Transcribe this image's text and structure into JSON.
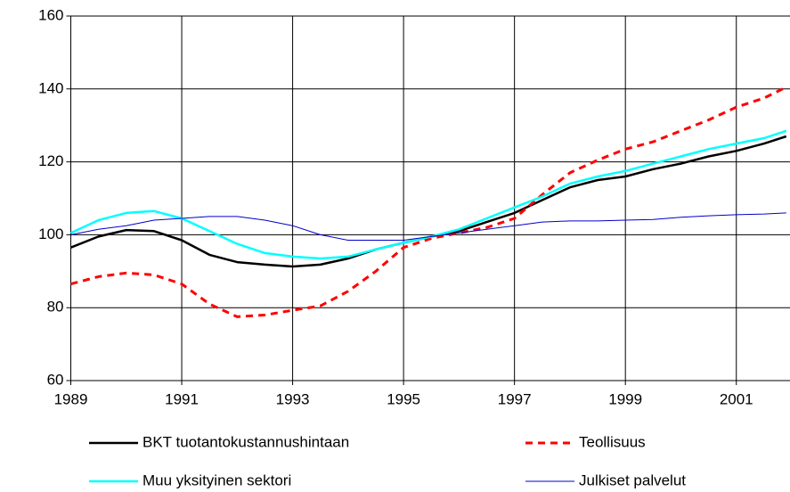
{
  "chart_data": {
    "type": "line",
    "x": [
      1989,
      1989.5,
      1990,
      1990.5,
      1991,
      1991.5,
      1992,
      1992.5,
      1993,
      1993.5,
      1994,
      1994.5,
      1995,
      1995.5,
      1996,
      1996.5,
      1997,
      1997.5,
      1998,
      1998.5,
      1999,
      1999.5,
      2000,
      2000.5,
      2001,
      2001.5,
      2001.9
    ],
    "series": [
      {
        "name": "BKT tuotantokustannushintaan",
        "color": "#000000",
        "width": 2.5,
        "dash": false,
        "values": [
          96.5,
          99.5,
          101.3,
          101,
          98.5,
          94.5,
          92.5,
          91.8,
          91.3,
          91.8,
          93.5,
          96,
          97.8,
          99.5,
          101,
          103.5,
          106,
          109.5,
          113,
          115,
          116,
          118,
          119.5,
          121.5,
          123,
          125,
          127
        ]
      },
      {
        "name": "Teollisuus",
        "color": "#ff0000",
        "width": 3,
        "dash": true,
        "values": [
          86.5,
          88.5,
          89.5,
          89,
          86.5,
          81,
          77.5,
          78,
          79.3,
          80.5,
          84.5,
          90,
          96.5,
          99,
          100.5,
          102,
          104.5,
          111,
          117,
          120.5,
          123.5,
          125.5,
          128.5,
          131.5,
          135,
          137.5,
          140.5
        ]
      },
      {
        "name": "Muu yksityinen sektori",
        "color": "#00ffff",
        "width": 2.5,
        "dash": false,
        "values": [
          100.5,
          104,
          106,
          106.5,
          104.5,
          101,
          97.5,
          95,
          94,
          93.5,
          94,
          96,
          97.8,
          99.5,
          101.5,
          104.5,
          107.5,
          110.5,
          114,
          116,
          117.5,
          119.5,
          121.5,
          123.5,
          125,
          126.5,
          128.5
        ]
      },
      {
        "name": "Julkiset palvelut",
        "color": "#0000cc",
        "width": 1,
        "dash": false,
        "values": [
          100,
          101.5,
          102.5,
          104,
          104.5,
          105,
          105,
          104,
          102.5,
          100,
          98.5,
          98.5,
          98.5,
          99.5,
          100.5,
          101.5,
          102.5,
          103.5,
          103.8,
          103.8,
          104,
          104.2,
          104.8,
          105.2,
          105.5,
          105.7,
          106
        ]
      }
    ],
    "xlim": [
      1989,
      2002
    ],
    "xticks": [
      1989,
      1991,
      1993,
      1995,
      1997,
      1999,
      2001
    ],
    "ylim": [
      60,
      160
    ],
    "yticks": [
      60,
      80,
      100,
      120,
      140,
      160
    ],
    "grid": true
  }
}
